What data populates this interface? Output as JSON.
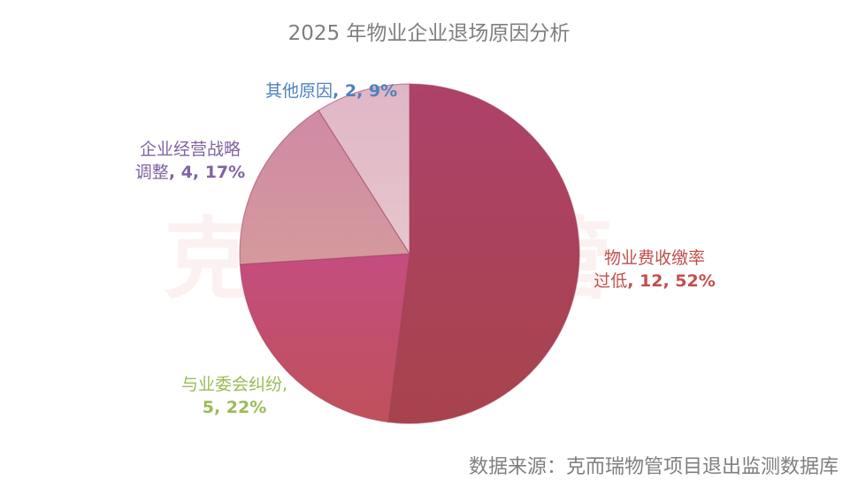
{
  "title": "2025 年物业企业退场原因分析",
  "watermark": "克而瑞物管",
  "source": "数据来源：克而瑞物管项目退出监测数据库",
  "labels": [
    {
      "name": "物业费收缴率过低",
      "line1": "物业费收缴率",
      "line2_text": "过低",
      "line2_values": ", 12, 52%",
      "color": "#c0504d"
    },
    {
      "name": "与业委会纠纷",
      "line1": "与业委会纠纷,",
      "line2_values": "5, 22%",
      "color": "#9bbb59"
    },
    {
      "name": "企业经营战略调整",
      "line1": "企业经营战略",
      "line2_text": "调整",
      "line2_values": ", 4, 17%",
      "color": "#8064a2"
    },
    {
      "name": "其他原因",
      "line1_text": "其他原因",
      "line1_values": ", 2, 9%",
      "color": "#4f81bd"
    }
  ],
  "chart_data": {
    "type": "pie",
    "title": "2025 年物业企业退场原因分析",
    "categories": [
      "物业费收缴率过低",
      "与业委会纠纷",
      "企业经营战略调整",
      "其他原因"
    ],
    "values": [
      12,
      5,
      4,
      2
    ],
    "percentages": [
      52,
      22,
      17,
      9
    ],
    "colors": [
      "#a8435a",
      "#c24d78",
      "#d3909f",
      "#e2bcc8"
    ],
    "label_colors": [
      "#c0504d",
      "#9bbb59",
      "#8064a2",
      "#4f81bd"
    ],
    "start_angle": "12 o'clock, clockwise",
    "legend": "none (data labels)",
    "source": "数据来源：克而瑞物管项目退出监测数据库"
  }
}
